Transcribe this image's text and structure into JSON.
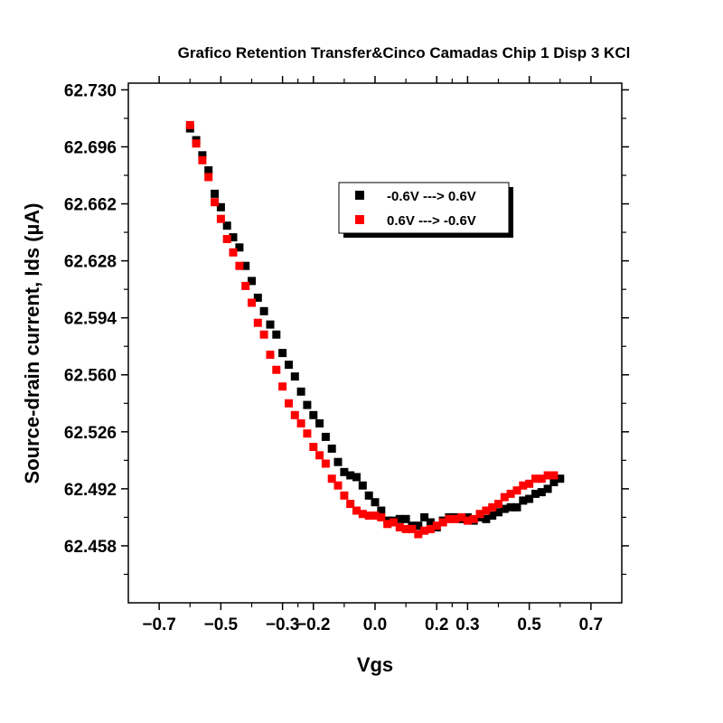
{
  "chart_data": {
    "type": "scatter",
    "title": "Grafico Retention Transfer&Cinco Camadas Chip 1 Disp 3 KCl",
    "xlabel": "Vgs",
    "ylabel": "Source-drain current, Ids (µA)",
    "xlim": [
      -0.8,
      0.8
    ],
    "ylim": [
      62.424,
      62.734
    ],
    "x_ticks": [
      -0.7,
      -0.5,
      -0.3,
      -0.2,
      0.0,
      0.2,
      0.3,
      0.5,
      0.7
    ],
    "x_tick_labels": [
      "−0.7",
      "−0.5",
      "−0.3",
      "−0.2",
      "0.0",
      "0.2",
      "0.3",
      "0.5",
      "0.7"
    ],
    "y_ticks": [
      62.458,
      62.492,
      62.526,
      62.56,
      62.594,
      62.628,
      62.662,
      62.696,
      62.73
    ],
    "y_tick_labels": [
      "62.458",
      "62.492",
      "62.526",
      "62.560",
      "62.594",
      "62.628",
      "62.662",
      "62.696",
      "62.730"
    ],
    "grid": false,
    "legend_position": "top-right",
    "series": [
      {
        "name": "-0.6V ---> 0.6V",
        "color": "#000000",
        "marker": "square",
        "x": [
          -0.6,
          -0.58,
          -0.56,
          -0.54,
          -0.52,
          -0.5,
          -0.48,
          -0.46,
          -0.44,
          -0.42,
          -0.4,
          -0.38,
          -0.36,
          -0.34,
          -0.32,
          -0.3,
          -0.28,
          -0.26,
          -0.24,
          -0.22,
          -0.2,
          -0.18,
          -0.16,
          -0.14,
          -0.12,
          -0.1,
          -0.08,
          -0.06,
          -0.04,
          -0.02,
          0.0,
          0.02,
          0.04,
          0.06,
          0.08,
          0.1,
          0.12,
          0.14,
          0.16,
          0.18,
          0.2,
          0.22,
          0.24,
          0.26,
          0.28,
          0.3,
          0.32,
          0.34,
          0.36,
          0.38,
          0.4,
          0.42,
          0.44,
          0.46,
          0.48,
          0.5,
          0.52,
          0.54,
          0.56,
          0.58,
          0.6
        ],
        "y": [
          62.707,
          62.7,
          62.691,
          62.682,
          62.668,
          62.66,
          62.649,
          62.642,
          62.636,
          62.625,
          62.616,
          62.606,
          62.598,
          62.59,
          62.584,
          62.573,
          62.566,
          62.559,
          62.55,
          62.542,
          62.536,
          62.531,
          62.523,
          62.516,
          62.508,
          62.502,
          62.5,
          62.499,
          62.494,
          62.488,
          62.484,
          62.479,
          62.473,
          62.473,
          62.474,
          62.474,
          62.47,
          62.47,
          62.475,
          62.472,
          62.469,
          62.473,
          62.475,
          62.475,
          62.474,
          62.475,
          62.473,
          62.475,
          62.474,
          62.476,
          62.478,
          62.48,
          62.481,
          62.481,
          62.485,
          62.486,
          62.489,
          62.49,
          62.492,
          62.496,
          62.498
        ]
      },
      {
        "name": "0.6V ---> -0.6V",
        "color": "#ff0000",
        "marker": "square",
        "x": [
          -0.6,
          -0.58,
          -0.56,
          -0.54,
          -0.52,
          -0.5,
          -0.48,
          -0.46,
          -0.44,
          -0.42,
          -0.4,
          -0.38,
          -0.36,
          -0.34,
          -0.32,
          -0.3,
          -0.28,
          -0.26,
          -0.24,
          -0.22,
          -0.2,
          -0.18,
          -0.16,
          -0.14,
          -0.12,
          -0.1,
          -0.08,
          -0.06,
          -0.04,
          -0.02,
          0.0,
          0.02,
          0.04,
          0.06,
          0.08,
          0.1,
          0.12,
          0.14,
          0.16,
          0.18,
          0.2,
          0.22,
          0.24,
          0.26,
          0.28,
          0.3,
          0.32,
          0.34,
          0.36,
          0.38,
          0.4,
          0.42,
          0.44,
          0.46,
          0.48,
          0.5,
          0.52,
          0.54,
          0.56,
          0.58
        ],
        "y": [
          62.709,
          62.698,
          62.688,
          62.678,
          62.663,
          62.653,
          62.641,
          62.633,
          62.625,
          62.613,
          62.603,
          62.591,
          62.584,
          62.572,
          62.563,
          62.553,
          62.543,
          62.536,
          62.531,
          62.525,
          62.517,
          62.512,
          62.507,
          62.498,
          62.494,
          62.488,
          62.483,
          62.479,
          62.477,
          62.476,
          62.476,
          62.475,
          62.471,
          62.472,
          62.469,
          62.468,
          62.468,
          62.465,
          62.467,
          62.468,
          62.47,
          62.472,
          62.474,
          62.474,
          62.475,
          62.473,
          62.474,
          62.477,
          62.479,
          62.481,
          62.483,
          62.487,
          62.489,
          62.491,
          62.494,
          62.495,
          62.498,
          62.498,
          62.5,
          62.5
        ]
      }
    ]
  }
}
